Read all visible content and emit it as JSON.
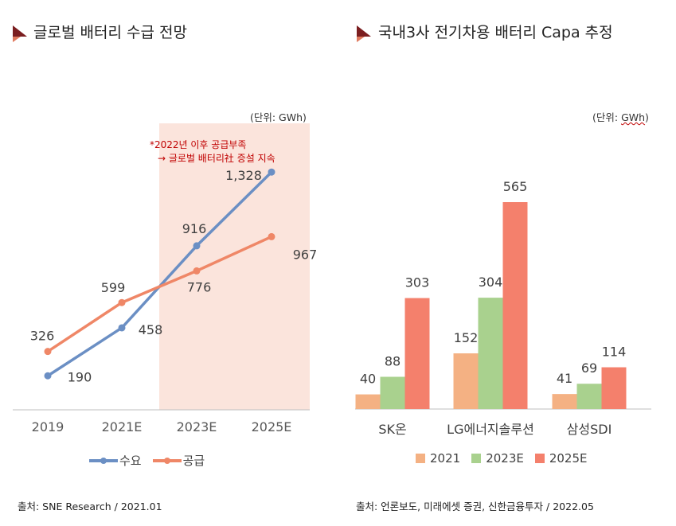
{
  "left": {
    "title": "글로벌 배터리 수급 전망",
    "unit": "(단위: GWh)",
    "note_line1": "*2022년 이후 공급부족",
    "note_line2": "→ 글로벌 배터리社 증설 지속",
    "source": "출처: SNE Research / 2021.01"
  },
  "right": {
    "title": "국내3사 전기차용 배터리 Capa 추정",
    "unit": "(단위: GWh)",
    "source": "출처: 언론보도, 미래에셋 증권, 신한금융투자 / 2022.05"
  },
  "colors": {
    "demand": "#6b8fc4",
    "supply": "#ef8767",
    "highlight": "#fbe4dc",
    "y2021": "#f4b183",
    "y2023": "#a9d18e",
    "y2025": "#f4806c",
    "marker_dark": "#7b1e20",
    "marker_light": "#e07a5f"
  },
  "chart_data": [
    {
      "type": "line",
      "title": "글로벌 배터리 수급 전망",
      "categories": [
        "2019",
        "2021E",
        "2023E",
        "2025E"
      ],
      "highlight_from": "2023E",
      "series": [
        {
          "name": "수요",
          "values": [
            190,
            458,
            916,
            1328
          ],
          "labels": [
            "190",
            "458",
            "916",
            "1,328"
          ]
        },
        {
          "name": "공급",
          "values": [
            326,
            599,
            776,
            967
          ],
          "labels": [
            "326",
            "599",
            "776",
            "967"
          ]
        }
      ],
      "ylim": [
        0,
        1600
      ],
      "legend": "bottom"
    },
    {
      "type": "bar",
      "title": "국내3사 전기차용 배터리 Capa 추정",
      "categories": [
        "SK온",
        "LG에너지솔루션",
        "삼성SDI"
      ],
      "series": [
        {
          "name": "2021",
          "values": [
            40,
            152,
            41
          ]
        },
        {
          "name": "2023E",
          "values": [
            88,
            304,
            69
          ]
        },
        {
          "name": "2025E",
          "values": [
            303,
            565,
            114
          ]
        }
      ],
      "ylim": [
        0,
        700
      ],
      "legend": "bottom"
    }
  ]
}
